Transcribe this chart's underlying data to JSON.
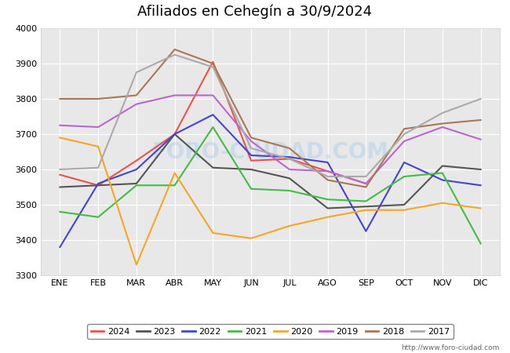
{
  "title": "Afiliados en Cehegín a 30/9/2024",
  "title_fontsize": 13,
  "ylim": [
    3300,
    4000
  ],
  "yticks": [
    3300,
    3400,
    3500,
    3600,
    3700,
    3800,
    3900,
    4000
  ],
  "months": [
    "ENE",
    "FEB",
    "MAR",
    "ABR",
    "MAY",
    "JUN",
    "JUL",
    "AGO",
    "SEP",
    "OCT",
    "NOV",
    "DIC"
  ],
  "watermark": "FORO-CIUDAD.COM",
  "url": "http://www.foro-ciudad.com",
  "fig_facecolor": "#ffffff",
  "plot_facecolor": "#e8e8e8",
  "title_bar_color": "#5588cc",
  "grid_color": "#ffffff",
  "series": {
    "2024": {
      "color": "#e8534a",
      "linewidth": 1.5,
      "values": [
        3585,
        3555,
        3625,
        3700,
        3905,
        3625,
        3630,
        3595,
        3560,
        null,
        null,
        null
      ]
    },
    "2023": {
      "color": "#555555",
      "linewidth": 1.5,
      "values": [
        3550,
        3555,
        3560,
        3700,
        3605,
        3600,
        3575,
        3490,
        3495,
        3500,
        3610,
        3600
      ]
    },
    "2022": {
      "color": "#4444cc",
      "linewidth": 1.5,
      "values": [
        3380,
        3560,
        3600,
        3700,
        3755,
        3640,
        3635,
        3620,
        3425,
        3620,
        3570,
        3555
      ]
    },
    "2021": {
      "color": "#44bb44",
      "linewidth": 1.5,
      "values": [
        3480,
        3465,
        3555,
        3555,
        3720,
        3545,
        3540,
        3515,
        3510,
        3580,
        3590,
        3390
      ]
    },
    "2020": {
      "color": "#f5a623",
      "linewidth": 1.5,
      "values": [
        3690,
        3665,
        3330,
        3590,
        3420,
        3405,
        3440,
        3465,
        3485,
        3485,
        3505,
        3490
      ]
    },
    "2019": {
      "color": "#bb66cc",
      "linewidth": 1.5,
      "values": [
        3725,
        3720,
        3785,
        3810,
        3810,
        3680,
        3600,
        3595,
        3560,
        3680,
        3720,
        3685
      ]
    },
    "2018": {
      "color": "#aa7755",
      "linewidth": 1.5,
      "values": [
        3800,
        3800,
        3810,
        3940,
        3900,
        3690,
        3660,
        3570,
        3550,
        3715,
        3730,
        3740
      ]
    },
    "2017": {
      "color": "#aaaaaa",
      "linewidth": 1.5,
      "values": [
        3600,
        3605,
        3875,
        3925,
        3890,
        3660,
        3630,
        3580,
        3580,
        3700,
        3760,
        3800
      ]
    }
  },
  "legend_order": [
    "2024",
    "2023",
    "2022",
    "2021",
    "2020",
    "2019",
    "2018",
    "2017"
  ]
}
